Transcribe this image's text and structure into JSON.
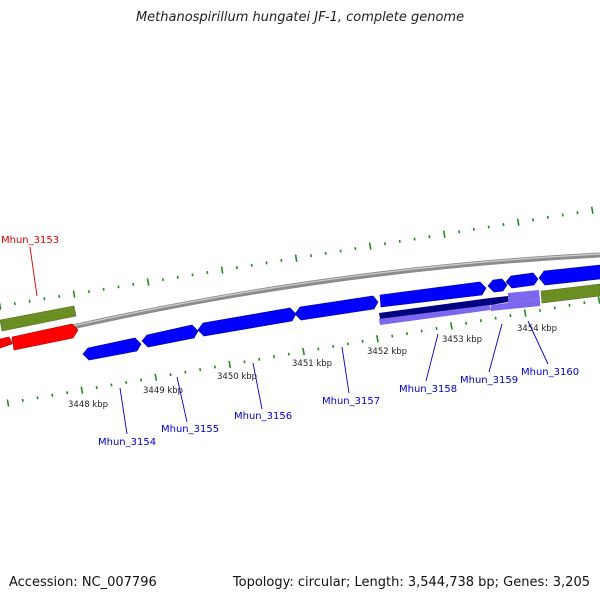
{
  "title": "Methanospirillum hungatei JF-1, complete genome",
  "footer": {
    "accession": "Accession: NC_007796",
    "stats": "Topology: circular; Length: 3,544,738 bp; Genes: 3,205"
  },
  "colors": {
    "backbone": "#8c8c8c",
    "forward_gene": "#6b8e23",
    "reverse_gene": "#ff0000",
    "cds": "#0000ff",
    "dark_cds": "#000080",
    "light_cds": "#7b68ee",
    "tick": "#228b22",
    "label_blue": "#0000cc",
    "label_red": "#dd0000"
  },
  "scale_labels": [
    "3448 kbp",
    "3449 kbp",
    "3450 kbp",
    "3451 kbp",
    "3452 kbp",
    "3453 kbp",
    "3454 kbp"
  ],
  "gene_labels": [
    {
      "text": "Mhun_3153",
      "color": "red"
    },
    {
      "text": "Mhun_3154",
      "color": "blue"
    },
    {
      "text": "Mhun_3155",
      "color": "blue"
    },
    {
      "text": "Mhun_3156",
      "color": "blue"
    },
    {
      "text": "Mhun_3157",
      "color": "blue"
    },
    {
      "text": "Mhun_3158",
      "color": "blue"
    },
    {
      "text": "Mhun_3159",
      "color": "blue"
    },
    {
      "text": "Mhun_3160",
      "color": "blue"
    }
  ]
}
